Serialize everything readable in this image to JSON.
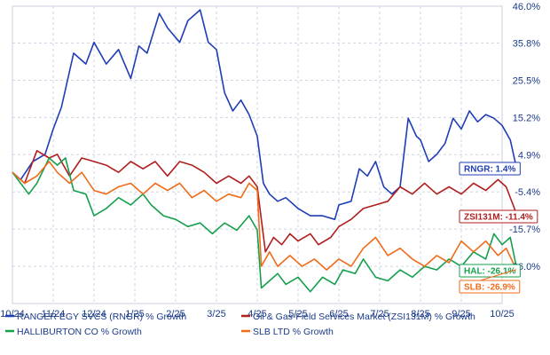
{
  "chart_data": {
    "type": "line",
    "x_ticks": [
      "10/24",
      "11/24",
      "12/24",
      "1/25",
      "2/25",
      "3/25",
      "4/25",
      "5/25",
      "6/25",
      "7/25",
      "8/25",
      "9/25",
      "10/25"
    ],
    "y_ticks": [
      "46.0%",
      "35.8%",
      "25.5%",
      "15.2%",
      "4.9%",
      "-5.4%",
      "-15.7%",
      "-26.0%"
    ],
    "ylim": [
      -36.3,
      46.0
    ],
    "y_unit": "%",
    "grid": true,
    "legend_position": "bottom",
    "series": [
      {
        "name": "RANGER EGY SVCS (RNGR) % Growth",
        "end_label": "RNGR: 1.4%",
        "color": "#1f3db5",
        "points": [
          [
            0,
            0
          ],
          [
            0.2,
            -2
          ],
          [
            0.5,
            3
          ],
          [
            0.8,
            5
          ],
          [
            1.0,
            12
          ],
          [
            1.2,
            18
          ],
          [
            1.5,
            33
          ],
          [
            1.8,
            30
          ],
          [
            2.0,
            36
          ],
          [
            2.3,
            30
          ],
          [
            2.6,
            34
          ],
          [
            2.9,
            26
          ],
          [
            3.1,
            35
          ],
          [
            3.3,
            33
          ],
          [
            3.6,
            44
          ],
          [
            3.8,
            40
          ],
          [
            4.1,
            36
          ],
          [
            4.3,
            42
          ],
          [
            4.6,
            45
          ],
          [
            4.8,
            36
          ],
          [
            5.0,
            34
          ],
          [
            5.2,
            22
          ],
          [
            5.4,
            17
          ],
          [
            5.6,
            20
          ],
          [
            5.8,
            16
          ],
          [
            6.0,
            10
          ],
          [
            6.15,
            -3
          ],
          [
            6.3,
            -6
          ],
          [
            6.5,
            -8
          ],
          [
            6.7,
            -7
          ],
          [
            7.0,
            -10
          ],
          [
            7.3,
            -12
          ],
          [
            7.6,
            -12
          ],
          [
            7.9,
            -13
          ],
          [
            8.0,
            -9
          ],
          [
            8.3,
            -8
          ],
          [
            8.5,
            1
          ],
          [
            8.7,
            -1
          ],
          [
            8.9,
            3
          ],
          [
            9.1,
            -4
          ],
          [
            9.3,
            -6
          ],
          [
            9.5,
            -4
          ],
          [
            9.7,
            15
          ],
          [
            9.9,
            10
          ],
          [
            10.0,
            9
          ],
          [
            10.2,
            3
          ],
          [
            10.4,
            5
          ],
          [
            10.6,
            8
          ],
          [
            10.8,
            15
          ],
          [
            11.0,
            12
          ],
          [
            11.2,
            17
          ],
          [
            11.4,
            14
          ],
          [
            11.6,
            16
          ],
          [
            11.8,
            15
          ],
          [
            12.0,
            13
          ],
          [
            12.2,
            9
          ],
          [
            12.35,
            1.4
          ]
        ]
      },
      {
        "name": "Oil & Gas-Field Services Market (ZSI131M) % Growth",
        "end_label": "ZSI131M: -11.4%",
        "color": "#b01e1e",
        "points": [
          [
            0,
            0
          ],
          [
            0.3,
            -3
          ],
          [
            0.6,
            6
          ],
          [
            0.9,
            4
          ],
          [
            1.1,
            5
          ],
          [
            1.4,
            -1
          ],
          [
            1.7,
            4
          ],
          [
            2.0,
            3
          ],
          [
            2.3,
            2
          ],
          [
            2.6,
            0
          ],
          [
            2.9,
            3
          ],
          [
            3.2,
            1
          ],
          [
            3.5,
            3
          ],
          [
            3.8,
            -1
          ],
          [
            4.1,
            3
          ],
          [
            4.4,
            2
          ],
          [
            4.7,
            0
          ],
          [
            5.0,
            -3
          ],
          [
            5.3,
            -1
          ],
          [
            5.6,
            -3
          ],
          [
            5.8,
            -1
          ],
          [
            6.0,
            -4
          ],
          [
            6.2,
            -22
          ],
          [
            6.4,
            -18
          ],
          [
            6.6,
            -20
          ],
          [
            6.8,
            -17
          ],
          [
            7.0,
            -19
          ],
          [
            7.3,
            -17
          ],
          [
            7.5,
            -20
          ],
          [
            7.8,
            -18
          ],
          [
            8.0,
            -15
          ],
          [
            8.3,
            -13
          ],
          [
            8.6,
            -10
          ],
          [
            8.9,
            -9
          ],
          [
            9.2,
            -8
          ],
          [
            9.5,
            -4
          ],
          [
            9.8,
            -6
          ],
          [
            10.1,
            -3
          ],
          [
            10.4,
            -6
          ],
          [
            10.7,
            -4
          ],
          [
            11.0,
            -6
          ],
          [
            11.3,
            -3
          ],
          [
            11.6,
            -5
          ],
          [
            11.9,
            -2
          ],
          [
            12.1,
            -4
          ],
          [
            12.35,
            -11.4
          ]
        ]
      },
      {
        "name": "HALLIBURTON CO % Growth",
        "end_label": "HAL: -26.1%",
        "color": "#15a04c",
        "points": [
          [
            0,
            0
          ],
          [
            0.2,
            -3
          ],
          [
            0.4,
            -6
          ],
          [
            0.6,
            -3
          ],
          [
            0.9,
            4
          ],
          [
            1.1,
            2
          ],
          [
            1.3,
            4
          ],
          [
            1.5,
            -5
          ],
          [
            1.8,
            -6
          ],
          [
            2.0,
            -12
          ],
          [
            2.3,
            -10
          ],
          [
            2.6,
            -7
          ],
          [
            2.9,
            -9
          ],
          [
            3.2,
            -6
          ],
          [
            3.4,
            -9
          ],
          [
            3.7,
            -12
          ],
          [
            4.0,
            -13
          ],
          [
            4.3,
            -15
          ],
          [
            4.6,
            -14
          ],
          [
            4.9,
            -17
          ],
          [
            5.2,
            -14
          ],
          [
            5.5,
            -16
          ],
          [
            5.8,
            -12
          ],
          [
            6.0,
            -16
          ],
          [
            6.1,
            -32
          ],
          [
            6.3,
            -30
          ],
          [
            6.5,
            -28
          ],
          [
            6.7,
            -31
          ],
          [
            7.0,
            -29
          ],
          [
            7.3,
            -33
          ],
          [
            7.6,
            -29
          ],
          [
            7.9,
            -31
          ],
          [
            8.1,
            -27
          ],
          [
            8.4,
            -28
          ],
          [
            8.6,
            -24
          ],
          [
            8.9,
            -29
          ],
          [
            9.2,
            -30
          ],
          [
            9.5,
            -27
          ],
          [
            9.8,
            -29
          ],
          [
            10.1,
            -26
          ],
          [
            10.4,
            -27
          ],
          [
            10.7,
            -24
          ],
          [
            11.0,
            -26
          ],
          [
            11.3,
            -22
          ],
          [
            11.6,
            -24
          ],
          [
            11.8,
            -17
          ],
          [
            12.0,
            -20
          ],
          [
            12.2,
            -18
          ],
          [
            12.35,
            -26.1
          ]
        ]
      },
      {
        "name": "SLB LTD % Growth",
        "end_label": "SLB: -26.9%",
        "color": "#f06b1a",
        "points": [
          [
            0,
            0
          ],
          [
            0.3,
            -3
          ],
          [
            0.6,
            -1
          ],
          [
            0.9,
            3
          ],
          [
            1.1,
            0
          ],
          [
            1.4,
            -3
          ],
          [
            1.7,
            0
          ],
          [
            2.0,
            -5
          ],
          [
            2.3,
            -6
          ],
          [
            2.6,
            -4
          ],
          [
            2.9,
            -3
          ],
          [
            3.2,
            -6
          ],
          [
            3.5,
            -3
          ],
          [
            3.8,
            -5
          ],
          [
            4.1,
            -3
          ],
          [
            4.4,
            -7
          ],
          [
            4.7,
            -5
          ],
          [
            5.0,
            -8
          ],
          [
            5.3,
            -6
          ],
          [
            5.6,
            -7
          ],
          [
            5.8,
            -3
          ],
          [
            6.0,
            -5
          ],
          [
            6.1,
            -26
          ],
          [
            6.3,
            -22
          ],
          [
            6.5,
            -26
          ],
          [
            6.8,
            -23
          ],
          [
            7.1,
            -26
          ],
          [
            7.4,
            -24
          ],
          [
            7.7,
            -27
          ],
          [
            8.0,
            -24
          ],
          [
            8.3,
            -26
          ],
          [
            8.6,
            -21
          ],
          [
            8.9,
            -18
          ],
          [
            9.2,
            -23
          ],
          [
            9.5,
            -21
          ],
          [
            9.8,
            -24
          ],
          [
            10.1,
            -26
          ],
          [
            10.4,
            -23
          ],
          [
            10.7,
            -25
          ],
          [
            11.0,
            -19
          ],
          [
            11.3,
            -22
          ],
          [
            11.6,
            -19
          ],
          [
            11.9,
            -23
          ],
          [
            12.1,
            -21
          ],
          [
            12.35,
            -26.9
          ]
        ]
      }
    ]
  }
}
